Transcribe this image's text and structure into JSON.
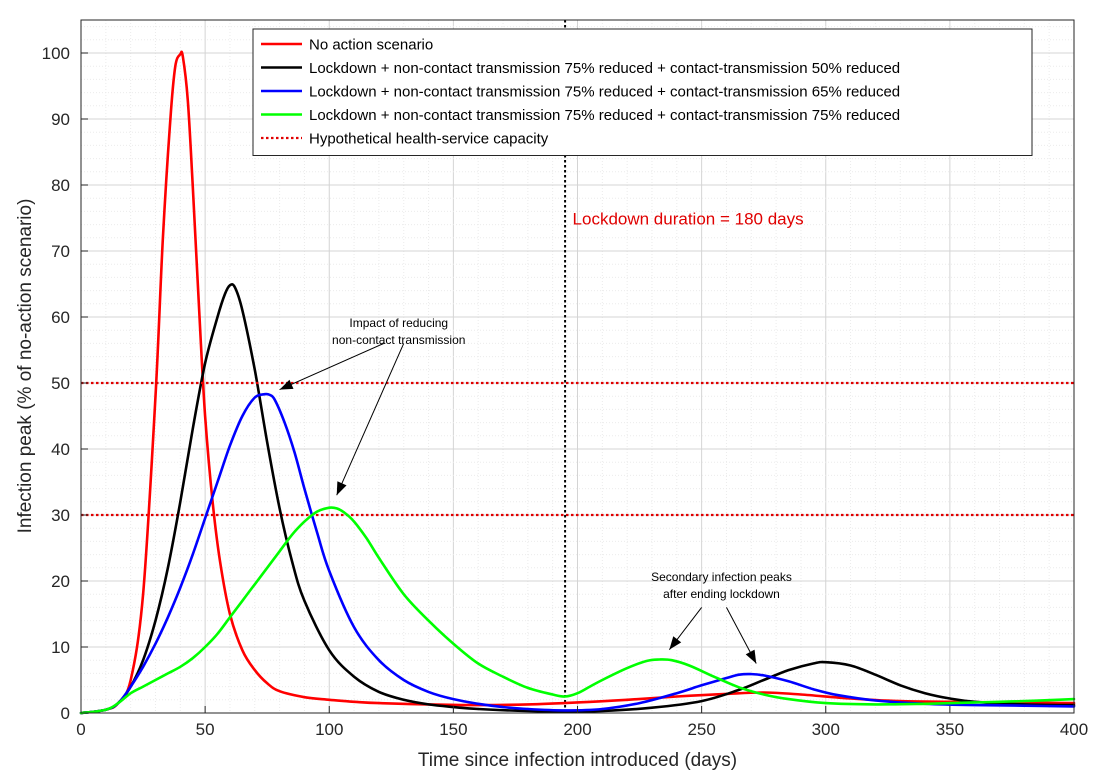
{
  "chart_data": {
    "type": "line",
    "xlabel": "Time since infection introduced (days)",
    "ylabel": "Infection peak (% of no-action scenario)",
    "xlim": [
      0,
      400
    ],
    "ylim": [
      0,
      105
    ],
    "xticks": [
      0,
      50,
      100,
      150,
      200,
      250,
      300,
      350,
      400
    ],
    "yticks": [
      0,
      10,
      20,
      30,
      40,
      50,
      60,
      70,
      80,
      90,
      100
    ],
    "grid": true,
    "legend_position": "top-right",
    "series": [
      {
        "name": "No action scenario",
        "color": "#ff0000",
        "style": "solid",
        "x": [
          0,
          10,
          15,
          20,
          25,
          30,
          33,
          36,
          38,
          40,
          41,
          43,
          45,
          48,
          50,
          53,
          56,
          60,
          65,
          70,
          75,
          80,
          90,
          100,
          110,
          120,
          140,
          160,
          180,
          200,
          220,
          240,
          260,
          275,
          290,
          310,
          330,
          350,
          370,
          400
        ],
        "y": [
          0,
          0.5,
          1.5,
          5,
          18,
          48,
          72,
          90,
          98,
          99.8,
          99.5,
          93,
          80,
          58,
          45,
          32,
          23,
          15,
          9.5,
          6.5,
          4.5,
          3.3,
          2.4,
          2.0,
          1.7,
          1.5,
          1.3,
          1.2,
          1.3,
          1.6,
          2.0,
          2.5,
          2.9,
          3.1,
          2.8,
          2.2,
          1.8,
          1.7,
          1.6,
          1.5
        ]
      },
      {
        "name": "Lockdown + non-contact transmission 75% reduced + contact-transmission 50% reduced",
        "color": "#000000",
        "style": "solid",
        "x": [
          0,
          10,
          15,
          20,
          25,
          30,
          35,
          40,
          45,
          50,
          55,
          58,
          60,
          62,
          65,
          70,
          75,
          80,
          85,
          90,
          100,
          110,
          120,
          130,
          140,
          150,
          160,
          180,
          195,
          210,
          230,
          250,
          265,
          275,
          285,
          295,
          300,
          310,
          320,
          330,
          340,
          350,
          360,
          380,
          400
        ],
        "y": [
          0,
          0.5,
          1.5,
          4,
          8,
          14,
          22,
          32,
          43,
          53,
          60,
          63.5,
          64.8,
          64.5,
          61,
          52,
          41,
          31,
          23,
          17,
          9.5,
          5.5,
          3.2,
          2.0,
          1.3,
          0.9,
          0.6,
          0.3,
          0.2,
          0.3,
          0.8,
          1.8,
          3.5,
          5.0,
          6.5,
          7.5,
          7.7,
          7.2,
          5.8,
          4.2,
          3.0,
          2.2,
          1.7,
          1.3,
          1.2
        ]
      },
      {
        "name": "Lockdown + non-contact transmission 75% reduced + contact-transmission 65% reduced",
        "color": "#0000ff",
        "style": "solid",
        "x": [
          0,
          10,
          15,
          20,
          25,
          30,
          35,
          40,
          45,
          50,
          55,
          60,
          65,
          70,
          74,
          76,
          78,
          82,
          86,
          90,
          95,
          100,
          110,
          120,
          130,
          140,
          150,
          160,
          170,
          180,
          195,
          210,
          225,
          240,
          250,
          260,
          265,
          270,
          275,
          285,
          295,
          305,
          320,
          340,
          360,
          380,
          400
        ],
        "y": [
          0,
          0.5,
          1.5,
          4,
          7,
          10.5,
          14.5,
          19,
          24,
          29.5,
          35,
          40.5,
          45,
          47.8,
          48.3,
          48.2,
          47.5,
          44,
          39.5,
          34,
          27.5,
          21.5,
          13,
          8,
          5,
          3.2,
          2.1,
          1.4,
          0.9,
          0.6,
          0.4,
          0.6,
          1.5,
          3.0,
          4.2,
          5.3,
          5.8,
          5.9,
          5.7,
          4.8,
          3.6,
          2.7,
          1.9,
          1.4,
          1.2,
          1.1,
          1.0
        ]
      },
      {
        "name": "Lockdown + non-contact transmission 75% reduced + contact-transmission 75% reduced",
        "color": "#00ff00",
        "style": "solid",
        "x": [
          0,
          10,
          15,
          20,
          25,
          30,
          35,
          40,
          45,
          50,
          55,
          60,
          65,
          70,
          75,
          80,
          85,
          90,
          95,
          100,
          103,
          106,
          110,
          115,
          120,
          130,
          140,
          150,
          160,
          170,
          180,
          190,
          195,
          200,
          205,
          210,
          220,
          228,
          233,
          238,
          245,
          255,
          265,
          275,
          285,
          300,
          320,
          340,
          360,
          380,
          400
        ],
        "y": [
          0,
          0.5,
          1.5,
          3,
          4,
          5,
          6,
          7,
          8.3,
          10,
          12,
          14.5,
          17,
          19.5,
          22,
          24.5,
          27,
          29,
          30.5,
          31.1,
          31.0,
          30.4,
          29,
          26.5,
          23.5,
          18,
          14,
          10.5,
          7.5,
          5.5,
          3.8,
          2.8,
          2.5,
          3.0,
          4.0,
          5.0,
          6.8,
          7.9,
          8.1,
          8.0,
          7.2,
          5.5,
          3.9,
          2.8,
          2.1,
          1.5,
          1.3,
          1.4,
          1.6,
          1.8,
          2.1
        ]
      },
      {
        "name": "Hypothetical health-service capacity",
        "color": "#e00000",
        "style": "dotted",
        "x": [
          0,
          400
        ],
        "y": [
          50,
          50
        ]
      }
    ],
    "extra_lines": [
      {
        "kind": "hline",
        "y": 30,
        "color": "#e00000",
        "style": "dotted"
      },
      {
        "kind": "vline",
        "x": 195,
        "color": "#000000",
        "style": "dotted"
      }
    ],
    "annotations": [
      {
        "text": "Lockdown duration = 180 days",
        "x": 198,
        "y": 74,
        "color": "#e00000"
      },
      {
        "lines": [
          "Impact of reducing",
          "non-contact transmission"
        ],
        "x": 128,
        "y": 58.5
      },
      {
        "lines": [
          "Secondary infection peaks",
          "after ending lockdown"
        ],
        "x": 258,
        "y": 20
      }
    ],
    "arrows": [
      {
        "from": [
          122,
          56
        ],
        "to": [
          80,
          49
        ]
      },
      {
        "from": [
          130,
          56
        ],
        "to": [
          103,
          33
        ]
      },
      {
        "from": [
          250,
          16
        ],
        "to": [
          237,
          9.6
        ]
      },
      {
        "from": [
          260,
          16
        ],
        "to": [
          272,
          7.5
        ]
      }
    ]
  }
}
